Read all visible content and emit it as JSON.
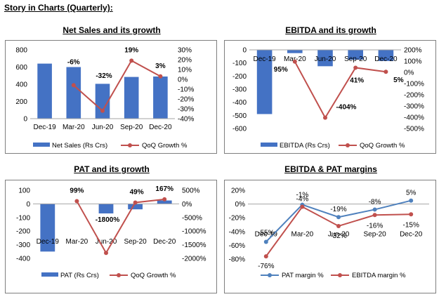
{
  "page_title": "Story in Charts (Quarterly):",
  "colors": {
    "bar": "#4472C4",
    "line_red": "#C0504D",
    "line_blue": "#4F81BD",
    "frame": "#7F7F7F"
  },
  "chart_data": [
    {
      "type": "bar+line",
      "title": "Net Sales and its growth",
      "categories": [
        "Dec-19",
        "Mar-20",
        "Jun-20",
        "Sep-20",
        "Dec-20"
      ],
      "series": [
        {
          "name": "Net Sales (Rs Crs)",
          "type": "bar",
          "axis": "left",
          "values": [
            640,
            600,
            405,
            485,
            490
          ]
        },
        {
          "name": "QoQ Growth %",
          "type": "line",
          "axis": "right",
          "values": [
            null,
            -6,
            -32,
            19,
            3
          ]
        }
      ],
      "data_labels": [
        "",
        "-6%",
        "-32%",
        "19%",
        "3%"
      ],
      "left_axis": {
        "min": 0,
        "max": 800,
        "ticks": [
          "0",
          "200",
          "400",
          "600",
          "800"
        ]
      },
      "right_axis": {
        "min": -40,
        "max": 30,
        "ticks": [
          "-40%",
          "-30%",
          "-20%",
          "-10%",
          "0%",
          "10%",
          "20%",
          "30%"
        ]
      },
      "legend_position": "bottom"
    },
    {
      "type": "bar+line",
      "title": "EBITDA and its growth",
      "categories": [
        "Dec-19",
        "Mar-20",
        "Jun-20",
        "Sep-20",
        "Dec-20"
      ],
      "series": [
        {
          "name": "EBITDA (Rs Crs)",
          "type": "bar",
          "axis": "left",
          "values": [
            -490,
            -25,
            -125,
            -75,
            -85
          ]
        },
        {
          "name": "QoQ Growth %",
          "type": "line",
          "axis": "right",
          "values": [
            null,
            95,
            -404,
            41,
            5
          ]
        }
      ],
      "data_labels": [
        "",
        "95%",
        "-404%",
        "41%",
        "5%"
      ],
      "left_axis": {
        "min": -600,
        "max": 0,
        "ticks": [
          "-600",
          "-500",
          "-400",
          "-300",
          "-200",
          "-100",
          "0"
        ]
      },
      "right_axis": {
        "min": -500,
        "max": 200,
        "ticks": [
          "-500%",
          "-400%",
          "-300%",
          "-200%",
          "-100%",
          "0%",
          "100%",
          "200%"
        ]
      },
      "legend_position": "bottom"
    },
    {
      "type": "bar+line",
      "title": "PAT and its growth",
      "categories": [
        "Dec-19",
        "Mar-20",
        "Jun-20",
        "Sep-20",
        "Dec-20"
      ],
      "series": [
        {
          "name": "PAT (Rs Crs)",
          "type": "bar",
          "axis": "left",
          "values": [
            -350,
            0,
            -70,
            -40,
            25
          ]
        },
        {
          "name": "QoQ Growth %",
          "type": "line",
          "axis": "right",
          "values": [
            null,
            99,
            -1800,
            49,
            167
          ]
        }
      ],
      "data_labels": [
        "",
        "99%",
        "-1800%",
        "49%",
        "167%"
      ],
      "left_axis": {
        "min": -400,
        "max": 100,
        "ticks": [
          "-400",
          "-300",
          "-200",
          "-100",
          "0",
          "100"
        ]
      },
      "right_axis": {
        "min": -2000,
        "max": 500,
        "ticks": [
          "-2000%",
          "-1500%",
          "-1000%",
          "-500%",
          "0%",
          "500%"
        ]
      },
      "legend_position": "bottom"
    },
    {
      "type": "line",
      "title": "EBITDA & PAT margins",
      "categories": [
        "Dec-19",
        "Mar-20",
        "Jun-20",
        "Sep-20",
        "Dec-20"
      ],
      "series": [
        {
          "name": "PAT margin %",
          "values": [
            -55,
            -1,
            -19,
            -8,
            5
          ],
          "labels": [
            "-55%",
            "-1%",
            "-19%",
            "-8%",
            "5%"
          ]
        },
        {
          "name": "EBITDA margin %",
          "values": [
            -76,
            -4,
            -32,
            -16,
            -15
          ],
          "labels": [
            "-76%",
            "-4%",
            "-32%",
            "-16%",
            "-15%"
          ]
        }
      ],
      "left_axis": {
        "min": -80,
        "max": 20,
        "ticks": [
          "-80%",
          "-60%",
          "-40%",
          "-20%",
          "0%",
          "20%"
        ]
      },
      "legend_position": "bottom"
    }
  ]
}
